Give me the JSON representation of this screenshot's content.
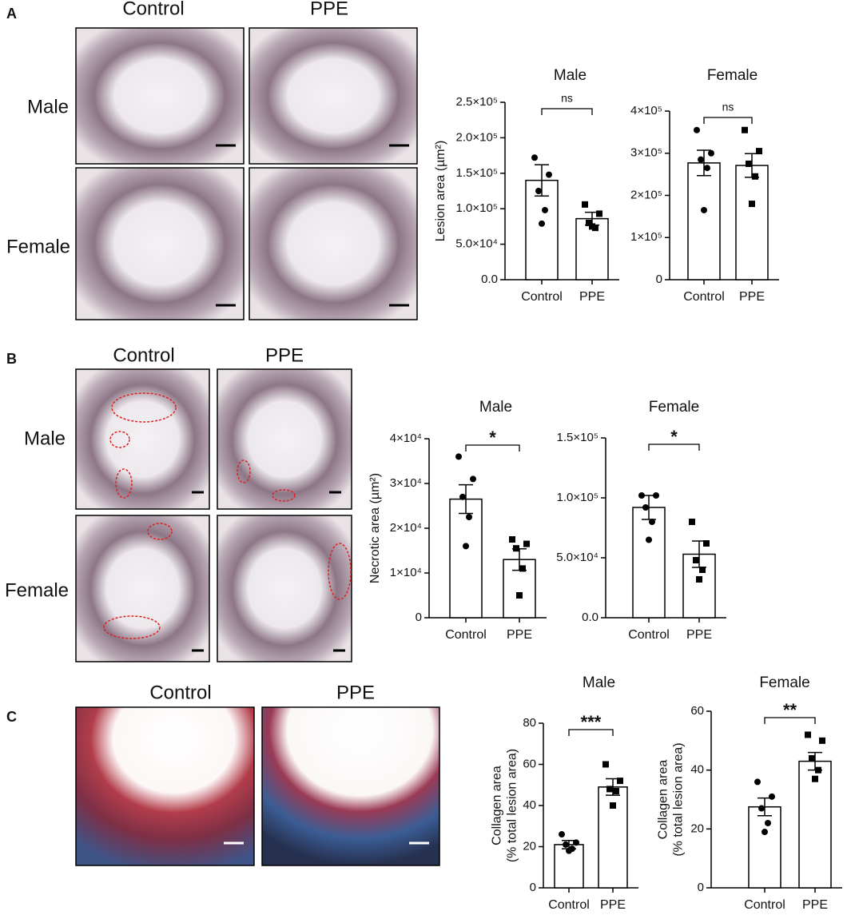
{
  "panels": [
    {
      "label": "A",
      "columns": [
        "Control",
        "PPE"
      ],
      "rows": [
        "Male",
        "Female"
      ]
    },
    {
      "label": "B",
      "columns": [
        "Control",
        "PPE"
      ],
      "rows": [
        "Male",
        "Female"
      ]
    },
    {
      "label": "C",
      "columns": [
        "Control",
        "PPE"
      ]
    }
  ],
  "chart_data": [
    {
      "type": "bar",
      "title": "Male",
      "ylabel": [
        "Lesion area (µm²)"
      ],
      "categories": [
        "Control",
        "PPE"
      ],
      "values": [
        140000,
        86000
      ],
      "errors": [
        22000,
        9000
      ],
      "points": [
        [
          172000,
          148000,
          125000,
          98000,
          79000
        ],
        [
          106000,
          93000,
          80000,
          73000,
          75000
        ]
      ],
      "markers": [
        "circle",
        "square"
      ],
      "significance": "ns",
      "color": "#ffffff",
      "ylim": [
        0,
        250000
      ],
      "yticks": [
        {
          "value": 0,
          "label": "0.0"
        },
        {
          "value": 50000,
          "label": "5.0×10⁴"
        },
        {
          "value": 100000,
          "label": "1.0×10⁵"
        },
        {
          "value": 150000,
          "label": "1.5×10⁵"
        },
        {
          "value": 200000,
          "label": "2.0×10⁵"
        },
        {
          "value": 250000,
          "label": "2.5×10⁵"
        }
      ]
    },
    {
      "type": "bar",
      "title": "Female",
      "categories": [
        "Control",
        "PPE"
      ],
      "values": [
        277000,
        271000
      ],
      "errors": [
        30000,
        28000
      ],
      "points": [
        [
          355000,
          300000,
          285000,
          265000,
          165000
        ],
        [
          355000,
          305000,
          275000,
          245000,
          180000
        ]
      ],
      "markers": [
        "circle",
        "square"
      ],
      "significance": "ns",
      "color": "#ffffff",
      "ylim": [
        0,
        400000
      ],
      "yticks": [
        0,
        {
          "value": 100000,
          "label": "1×10⁵"
        },
        {
          "value": 200000,
          "label": "2×10⁵"
        },
        {
          "value": 300000,
          "label": "3×10⁵"
        },
        {
          "value": 400000,
          "label": "4×10⁵"
        }
      ]
    },
    {
      "type": "bar",
      "title": "Male",
      "ylabel": [
        "Necrotic area (µm²)"
      ],
      "categories": [
        "Control",
        "PPE"
      ],
      "values": [
        26500,
        13000
      ],
      "errors": [
        3200,
        2400
      ],
      "points": [
        [
          36000,
          31000,
          27000,
          22500,
          16000
        ],
        [
          17500,
          16500,
          15500,
          11000,
          5000
        ]
      ],
      "markers": [
        "circle",
        "square"
      ],
      "significance": "*",
      "color": "#ffffff",
      "ylim": [
        0,
        40000
      ],
      "yticks": [
        0,
        {
          "value": 10000,
          "label": "1×10⁴"
        },
        {
          "value": 20000,
          "label": "2×10⁴"
        },
        {
          "value": 30000,
          "label": "3×10⁴"
        },
        {
          "value": 40000,
          "label": "4×10⁴"
        }
      ]
    },
    {
      "type": "bar",
      "title": "Female",
      "categories": [
        "Control",
        "PPE"
      ],
      "values": [
        92000,
        53000
      ],
      "errors": [
        10000,
        11000
      ],
      "points": [
        [
          102000,
          102000,
          92000,
          80000,
          65000
        ],
        [
          80000,
          62000,
          48000,
          40000,
          32000
        ]
      ],
      "markers": [
        "circle",
        "square"
      ],
      "significance": "*",
      "color": "#ffffff",
      "ylim": [
        0,
        150000
      ],
      "yticks": [
        {
          "value": 0,
          "label": "0.0"
        },
        {
          "value": 50000,
          "label": "5.0×10⁴"
        },
        {
          "value": 100000,
          "label": "1.0×10⁵"
        },
        {
          "value": 150000,
          "label": "1.5×10⁵"
        }
      ]
    },
    {
      "type": "bar",
      "title": "Male",
      "ylabel": [
        "Collagen area",
        "(% total lesion area)"
      ],
      "categories": [
        "Control",
        "PPE"
      ],
      "values": [
        21,
        49
      ],
      "errors": [
        2,
        4
      ],
      "points": [
        [
          26,
          22,
          21,
          19,
          18
        ],
        [
          60,
          52,
          48,
          47,
          40
        ]
      ],
      "markers": [
        "circle",
        "square"
      ],
      "significance": "***",
      "color": "#ffffff",
      "ylim": [
        0,
        80
      ],
      "yticks": [
        0,
        20,
        40,
        60,
        80
      ]
    },
    {
      "type": "bar",
      "title": "Female",
      "ylabel": [
        "Collagen area",
        "(% total lesion area)"
      ],
      "categories": [
        "Control",
        "PPE"
      ],
      "values": [
        27.5,
        43
      ],
      "errors": [
        3,
        3
      ],
      "points": [
        [
          36,
          31,
          27,
          22,
          19
        ],
        [
          52,
          50,
          44,
          40,
          37
        ]
      ],
      "markers": [
        "circle",
        "square"
      ],
      "significance": "**",
      "color": "#ffffff",
      "ylim": [
        0,
        60
      ],
      "yticks": [
        0,
        20,
        40,
        60
      ]
    }
  ]
}
